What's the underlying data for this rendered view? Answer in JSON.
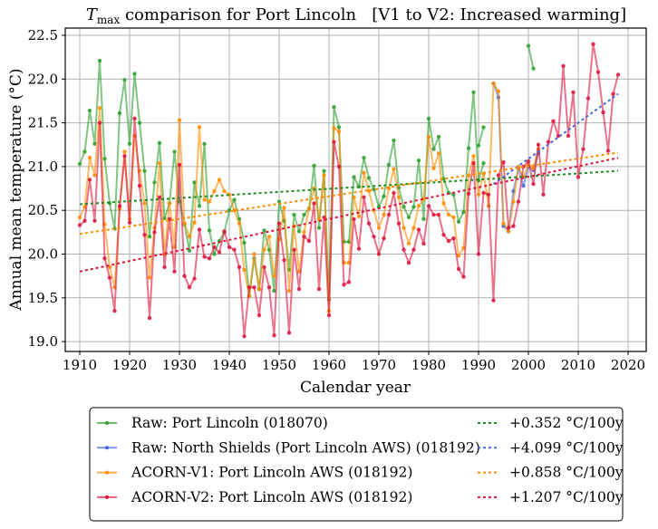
{
  "chart_data": {
    "type": "line",
    "title_main": "T",
    "title_sub": "max",
    "title_rest": " comparison for Port Lincoln   [V1 to V2: Increased warming]",
    "xlabel": "Calendar year",
    "ylabel": "Annual mean temperature (°C)",
    "xlim": [
      1908,
      2023
    ],
    "ylim": [
      18.9,
      22.6
    ],
    "xticks": [
      1910,
      1920,
      1930,
      1940,
      1950,
      1960,
      1970,
      1980,
      1990,
      2000,
      2010,
      2020
    ],
    "yticks": [
      19.0,
      19.5,
      20.0,
      20.5,
      21.0,
      21.5,
      22.0,
      22.5
    ],
    "ytick_labels": [
      "19.0",
      "19.5",
      "20.0",
      "20.5",
      "21.0",
      "21.5",
      "22.0",
      "22.5"
    ],
    "grid": true,
    "legend_position": "below",
    "series": [
      {
        "name": "Raw: Port Lincoln (018070)",
        "color": "#2ca02c",
        "segments": [
          {
            "x": [
              1910,
              1911,
              1912,
              1913,
              1914,
              1915,
              1916,
              1917,
              1918,
              1919,
              1920,
              1921,
              1922,
              1923,
              1924,
              1925,
              1926,
              1927,
              1928,
              1929,
              1930,
              1931,
              1932,
              1933,
              1934,
              1935,
              1936,
              1937,
              1938,
              1939,
              1940,
              1941,
              1942,
              1943,
              1944,
              1945,
              1946,
              1947,
              1948,
              1949,
              1950,
              1951,
              1952,
              1953,
              1954,
              1955,
              1956,
              1957,
              1958,
              1959,
              1960,
              1961,
              1962,
              1963,
              1964,
              1965,
              1966,
              1967,
              1968,
              1969,
              1970,
              1971,
              1972,
              1973,
              1974,
              1975,
              1976,
              1977,
              1978,
              1979,
              1980,
              1981,
              1982,
              1983,
              1984,
              1985,
              1986,
              1987,
              1988,
              1989,
              1990,
              1991
            ],
            "y": [
              21.03,
              21.17,
              21.64,
              21.26,
              22.21,
              21.09,
              20.58,
              20.29,
              21.61,
              21.99,
              21.26,
              22.06,
              21.5,
              20.95,
              20.2,
              20.82,
              21.27,
              20.41,
              20.58,
              21.17,
              20.6,
              20.34,
              20.04,
              20.82,
              20.55,
              21.26,
              20.27,
              20.0,
              20.15,
              20.25,
              20.5,
              20.62,
              20.4,
              20.13,
              19.52,
              19.95,
              19.6,
              20.27,
              20.05,
              19.58,
              20.6,
              20.38,
              19.82,
              20.45,
              20.26,
              20.45,
              20.52,
              21.01,
              20.3,
              20.95,
              19.48,
              21.68,
              21.45,
              20.14,
              20.14,
              20.88,
              20.77,
              21.1,
              20.87,
              20.74,
              20.54,
              20.66,
              21.02,
              21.3,
              20.76,
              20.54,
              20.42,
              20.54,
              21.07,
              20.4,
              21.55,
              21.2,
              21.34,
              20.86,
              20.7,
              20.68,
              20.37,
              20.48,
              21.21,
              21.85,
              20.84,
              21.04
            ]
          },
          {
            "x": [
              1990,
              1991
            ],
            "y": [
              21.24,
              21.45
            ]
          },
          {
            "x": [
              2000,
              2001
            ],
            "y": [
              22.38,
              22.12
            ]
          }
        ]
      },
      {
        "name": "Raw: North Shields (Port Lincoln AWS) (018192)",
        "color": "#4169e1",
        "segments": [
          {
            "x": [
              1993,
              1994,
              1995,
              1996,
              1997,
              1998,
              1999,
              2000,
              2001,
              2002
            ],
            "y": [
              21.95,
              21.79,
              20.32,
              20.26,
              20.72,
              20.98,
              20.78,
              21.0,
              20.96,
              21.15
            ]
          }
        ]
      },
      {
        "name": "ACORN-V1: Port Lincoln AWS (018192)",
        "color": "#ff8c00",
        "segments": [
          {
            "x": [
              1910,
              1911,
              1912,
              1913,
              1914,
              1915,
              1916,
              1917,
              1918,
              1919,
              1920,
              1921,
              1922,
              1923,
              1924,
              1925,
              1926,
              1927,
              1928,
              1929,
              1930,
              1931,
              1932,
              1933,
              1934,
              1935,
              1936,
              1937,
              1938,
              1939,
              1940,
              1941,
              1942,
              1943,
              1944,
              1945,
              1946,
              1947,
              1948,
              1949,
              1950,
              1951,
              1952,
              1953,
              1954,
              1955,
              1956,
              1957,
              1958,
              1959,
              1960,
              1961,
              1962,
              1963,
              1964,
              1965,
              1966,
              1967,
              1968,
              1969,
              1970,
              1971,
              1972,
              1973,
              1974,
              1975,
              1976,
              1977,
              1978,
              1979,
              1980,
              1981,
              1982,
              1983,
              1984,
              1985,
              1986,
              1987,
              1988,
              1989,
              1990,
              1991,
              1992,
              1993,
              1994,
              1995,
              1996,
              1997,
              1998,
              1999,
              2000,
              2001,
              2002
            ],
            "y": [
              20.42,
              20.54,
              21.1,
              20.9,
              21.67,
              20.34,
              19.85,
              19.62,
              20.52,
              21.17,
              20.4,
              21.35,
              20.95,
              20.58,
              19.73,
              20.3,
              21.04,
              20.0,
              20.58,
              20.08,
              21.53,
              20.35,
              20.2,
              20.36,
              21.45,
              20.62,
              20.6,
              20.72,
              20.85,
              20.72,
              20.68,
              20.5,
              20.35,
              19.82,
              19.52,
              20.0,
              19.6,
              20.05,
              20.2,
              19.75,
              20.17,
              20.53,
              19.58,
              20.32,
              19.8,
              20.25,
              20.52,
              20.75,
              20.4,
              20.9,
              19.35,
              21.44,
              21.4,
              19.9,
              19.9,
              20.65,
              20.43,
              20.93,
              20.72,
              20.5,
              20.3,
              20.45,
              20.75,
              20.97,
              20.65,
              20.3,
              20.12,
              20.3,
              20.55,
              20.63,
              21.34,
              20.98,
              21.15,
              20.58,
              20.45,
              20.42,
              19.98,
              20.07,
              20.9,
              21.12,
              20.68,
              20.92,
              20.55,
              21.95,
              21.86,
              20.35,
              20.26,
              20.6,
              21.0,
              20.88,
              21.02,
              20.98,
              21.2
            ]
          }
        ]
      },
      {
        "name": "ACORN-V2: Port Lincoln AWS (018192)",
        "color": "#dc143c",
        "segments": [
          {
            "x": [
              1910,
              1911,
              1912,
              1913,
              1914,
              1915,
              1916,
              1917,
              1918,
              1919,
              1920,
              1921,
              1922,
              1923,
              1924,
              1925,
              1926,
              1927,
              1928,
              1929,
              1930,
              1931,
              1932,
              1933,
              1934,
              1935,
              1936,
              1937,
              1938,
              1939,
              1940,
              1941,
              1942,
              1943,
              1944,
              1945,
              1946,
              1947,
              1948,
              1949,
              1950,
              1951,
              1952,
              1953,
              1954,
              1955,
              1956,
              1957,
              1958,
              1959,
              1960,
              1961,
              1962,
              1963,
              1964,
              1965,
              1966,
              1967,
              1968,
              1969,
              1970,
              1971,
              1972,
              1973,
              1974,
              1975,
              1976,
              1977,
              1978,
              1979,
              1980,
              1981,
              1982,
              1983,
              1984,
              1985,
              1986,
              1987,
              1988,
              1989,
              1990,
              1991,
              1992,
              1993,
              1994,
              1995,
              1996,
              1997,
              1998,
              1999,
              2000,
              2001,
              2002,
              2003,
              2004,
              2005,
              2006,
              2007,
              2008,
              2009,
              2010,
              2011,
              2012,
              2013,
              2014,
              2015,
              2016,
              2017,
              2018
            ],
            "y": [
              20.33,
              20.38,
              20.85,
              20.38,
              21.5,
              19.95,
              19.73,
              19.35,
              20.55,
              21.12,
              20.36,
              21.55,
              20.78,
              20.22,
              19.27,
              20.25,
              20.65,
              19.85,
              20.4,
              19.8,
              21.02,
              19.75,
              19.62,
              19.72,
              20.28,
              19.97,
              19.95,
              20.08,
              20.02,
              20.26,
              20.08,
              20.05,
              19.85,
              19.06,
              19.62,
              19.62,
              19.3,
              19.85,
              19.62,
              19.07,
              20.35,
              19.93,
              19.1,
              20.05,
              19.6,
              20.2,
              20.15,
              20.58,
              19.6,
              20.42,
              19.3,
              21.28,
              21.0,
              19.65,
              19.68,
              20.4,
              20.06,
              20.65,
              20.35,
              20.2,
              20.0,
              20.18,
              20.45,
              20.7,
              20.35,
              20.05,
              19.9,
              20.05,
              20.28,
              20.12,
              20.55,
              20.45,
              20.45,
              20.22,
              20.15,
              20.18,
              19.83,
              19.74,
              20.69,
              21.04,
              20.0,
              20.7,
              20.68,
              19.47,
              20.9,
              21.05,
              20.3,
              20.32,
              20.6,
              21.0,
              21.06,
              20.8,
              21.25,
              20.68,
              21.28,
              21.52,
              21.35,
              22.15,
              21.35,
              21.85,
              20.88,
              21.2,
              21.78,
              22.4,
              22.08,
              21.62,
              21.18,
              21.83,
              22.05
            ]
          }
        ]
      }
    ],
    "trends": [
      {
        "label": "+0.352 °C/100y",
        "color": "#228b22",
        "x": [
          1910,
          2018
        ],
        "y": [
          20.57,
          20.95
        ]
      },
      {
        "label": "+4.099 °C/100y",
        "color": "#4169e1",
        "x": [
          1993,
          2018
        ],
        "y": [
          20.8,
          21.83
        ]
      },
      {
        "label": "+0.858 °C/100y",
        "color": "#ff8c00",
        "x": [
          1910,
          2018
        ],
        "y": [
          20.23,
          21.16
        ]
      },
      {
        "label": "+1.207 °C/100y",
        "color": "#dc143c",
        "x": [
          1910,
          2018
        ],
        "y": [
          19.8,
          21.1
        ]
      }
    ]
  }
}
